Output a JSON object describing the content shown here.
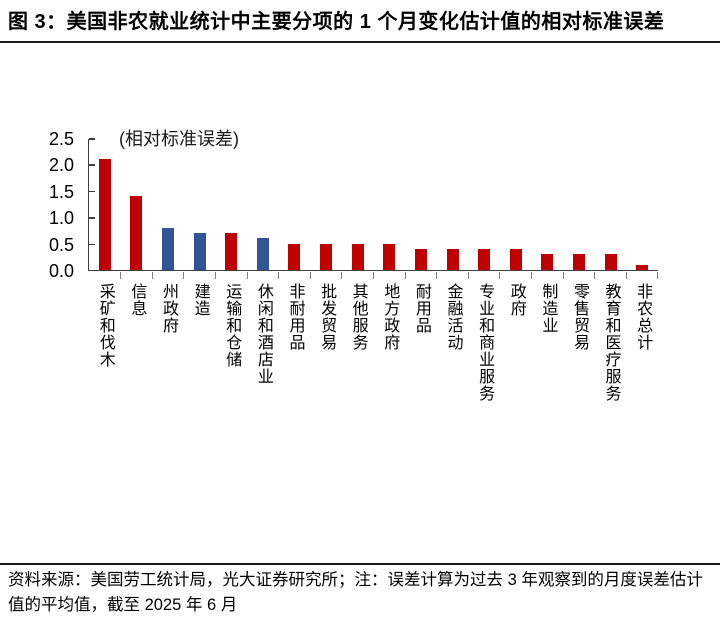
{
  "header": {
    "title": "图 3：美国非农就业统计中主要分项的 1 个月变化估计值的相对标准误差"
  },
  "chart_data": {
    "type": "bar",
    "title": "图 3：美国非农就业统计中主要分项的 1 个月变化估计值的相对标准误差",
    "annotation": "(相对标准误差)",
    "categories": [
      "采矿和伐木",
      "信息",
      "州政府",
      "建造",
      "运输和仓储",
      "休闲和酒店业",
      "非耐用品",
      "批发贸易",
      "其他服务",
      "地方政府",
      "耐用品",
      "金融活动",
      "专业和商业服务",
      "政府",
      "制造业",
      "零售贸易",
      "教育和医疗服务",
      "非农总计"
    ],
    "values": [
      2.1,
      1.4,
      0.8,
      0.7,
      0.7,
      0.6,
      0.5,
      0.5,
      0.5,
      0.5,
      0.4,
      0.4,
      0.4,
      0.4,
      0.3,
      0.3,
      0.3,
      0.1
    ],
    "bar_colors": [
      "#C00000",
      "#C00000",
      "#2F5597",
      "#2F5597",
      "#C00000",
      "#2F5597",
      "#C00000",
      "#C00000",
      "#C00000",
      "#C00000",
      "#C00000",
      "#C00000",
      "#C00000",
      "#C00000",
      "#C00000",
      "#C00000",
      "#C00000",
      "#C00000"
    ],
    "palette": {
      "red": "#C00000",
      "blue": "#2F5597"
    },
    "yticks": [
      "0.0",
      "0.5",
      "1.0",
      "1.5",
      "2.0",
      "2.5"
    ],
    "ylim": [
      0,
      2.5
    ],
    "xlabel": "",
    "ylabel": "",
    "grid": false,
    "legend": "none"
  },
  "footer": {
    "note": "资料来源：美国劳工统计局，光大证券研究所；注：误差计算为过去 3 年观察到的月度误差估计值的平均值，截至 2025 年 6 月"
  }
}
